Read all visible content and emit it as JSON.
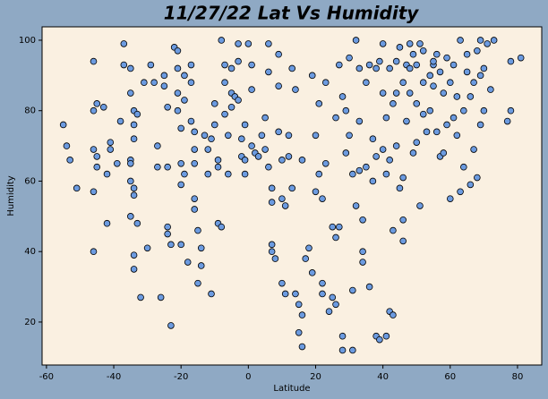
{
  "chart_data": {
    "type": "scatter",
    "title": "11/27/22 Lat Vs Humidity",
    "x_label": "Latitude",
    "y_label": "Humidity",
    "color": "#6c9be0",
    "x": [
      -55,
      -54,
      -53,
      -51,
      -46,
      -46,
      -45,
      -46,
      -45,
      -45,
      -46,
      -46,
      -43,
      -42,
      -42,
      -41,
      -41,
      -39,
      -38,
      -37,
      -37,
      -35,
      -35,
      -34,
      -34,
      -33,
      -34,
      -35,
      -35,
      -35,
      -34,
      -34,
      -35,
      -33,
      -34,
      -34,
      -32,
      -31,
      -30,
      -29,
      -28,
      -27,
      -26,
      -27,
      -25,
      -25,
      -24,
      -24,
      -24,
      -24,
      -23,
      -23,
      -22,
      -21,
      -21,
      -21,
      -21,
      -20,
      -20,
      -20,
      -20,
      -19,
      -19,
      -19,
      -18,
      -17,
      -17,
      -17,
      -16,
      -16,
      -16,
      -16,
      -16,
      -15,
      -15,
      -14,
      -14,
      -13,
      -12,
      -12,
      -11,
      -11,
      -10,
      -10,
      -9,
      -9,
      -9,
      -8,
      -8,
      -7,
      -7,
      -7,
      -6,
      -6,
      -5,
      -5,
      -5,
      -4,
      -3,
      -3,
      -3,
      -2,
      -2,
      -1,
      -1,
      -1,
      0,
      1,
      1,
      1,
      2,
      3,
      4,
      5,
      5,
      6,
      6,
      6,
      7,
      7,
      7,
      7,
      8,
      9,
      9,
      9,
      10,
      10,
      10,
      11,
      11,
      12,
      12,
      13,
      13,
      14,
      14,
      15,
      15,
      16,
      16,
      16,
      17,
      18,
      19,
      19,
      20,
      20,
      21,
      21,
      22,
      22,
      22,
      23,
      23,
      24,
      25,
      25,
      26,
      26,
      26,
      27,
      27,
      28,
      28,
      28,
      29,
      29,
      30,
      30,
      31,
      31,
      31,
      32,
      32,
      33,
      33,
      33,
      34,
      34,
      34,
      35,
      35,
      36,
      36,
      37,
      37,
      38,
      38,
      38,
      39,
      40,
      40,
      40,
      41,
      41,
      42,
      42,
      43,
      43,
      43,
      44,
      44,
      45,
      45,
      46,
      46,
      46,
      47,
      47,
      48,
      48,
      49,
      49,
      50,
      50,
      50,
      51,
      51,
      52,
      52,
      53,
      54,
      54,
      55,
      55,
      56,
      56,
      57,
      57,
      58,
      59,
      59,
      60,
      60,
      61,
      61,
      62,
      62,
      63,
      64,
      64,
      65,
      65,
      66,
      66,
      67,
      67,
      68,
      68,
      69,
      69,
      70,
      70,
      71,
      72,
      73,
      77,
      78,
      78,
      81,
      39,
      41,
      42,
      44,
      46,
      48,
      52,
      55,
      58,
      63,
      69
    ],
    "values": [
      76,
      70,
      66,
      58,
      94,
      80,
      82,
      69,
      67,
      64,
      57,
      40,
      81,
      62,
      48,
      71,
      69,
      65,
      77,
      99,
      93,
      92,
      85,
      80,
      76,
      79,
      72,
      66,
      65,
      60,
      58,
      56,
      50,
      48,
      39,
      35,
      27,
      88,
      41,
      93,
      88,
      64,
      27,
      70,
      90,
      87,
      81,
      64,
      47,
      45,
      42,
      19,
      98,
      97,
      92,
      85,
      80,
      75,
      65,
      59,
      42,
      90,
      83,
      62,
      37,
      93,
      88,
      77,
      74,
      69,
      65,
      55,
      52,
      46,
      31,
      36,
      41,
      73,
      69,
      62,
      72,
      28,
      82,
      76,
      66,
      64,
      48,
      47,
      100,
      93,
      88,
      79,
      73,
      62,
      92,
      85,
      81,
      84,
      83,
      99,
      94,
      72,
      67,
      66,
      76,
      62,
      99,
      93,
      86,
      70,
      68,
      67,
      73,
      78,
      69,
      99,
      91,
      64,
      58,
      54,
      42,
      40,
      38,
      74,
      96,
      87,
      66,
      55,
      31,
      28,
      53,
      67,
      73,
      92,
      58,
      86,
      28,
      25,
      17,
      22,
      13,
      66,
      38,
      41,
      90,
      34,
      57,
      73,
      82,
      62,
      31,
      28,
      55,
      88,
      65,
      23,
      47,
      27,
      25,
      44,
      78,
      93,
      47,
      12,
      16,
      84,
      80,
      68,
      95,
      73,
      12,
      29,
      62,
      100,
      53,
      92,
      63,
      77,
      49,
      40,
      37,
      88,
      64,
      93,
      30,
      72,
      60,
      67,
      16,
      92,
      15,
      99,
      85,
      69,
      16,
      62,
      23,
      92,
      46,
      22,
      82,
      94,
      70,
      58,
      98,
      88,
      49,
      43,
      93,
      77,
      99,
      85,
      96,
      68,
      93,
      82,
      71,
      99,
      53,
      97,
      88,
      74,
      90,
      80,
      93,
      87,
      96,
      74,
      67,
      91,
      85,
      95,
      76,
      88,
      55,
      93,
      78,
      84,
      73,
      57,
      80,
      64,
      91,
      96,
      59,
      84,
      88,
      69,
      97,
      61,
      100,
      76,
      92,
      80,
      99,
      86,
      100,
      77,
      80,
      94,
      95,
      94,
      78,
      66,
      85,
      61,
      92,
      79,
      94,
      68,
      100,
      90
    ],
    "xlim": [
      -61.3,
      87.2
    ],
    "ylim": [
      7.8,
      103.8
    ],
    "xticks": [
      -60,
      -40,
      -20,
      0,
      20,
      40,
      60,
      80
    ],
    "yticks": [
      20,
      40,
      60,
      80,
      100
    ],
    "grid": false
  }
}
